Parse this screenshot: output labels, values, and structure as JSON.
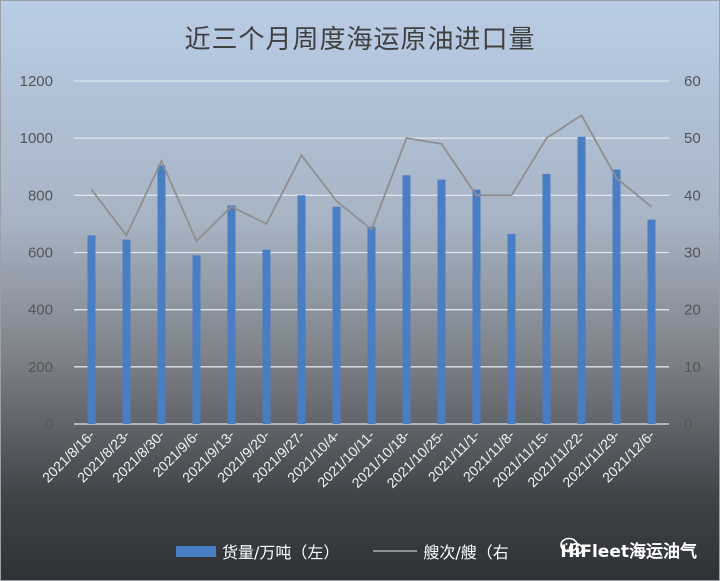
{
  "chart_data": {
    "type": "bar+line",
    "title": "近三个月周度海运原油进口量",
    "categories": [
      "2021/8/16-",
      "2021/8/23-",
      "2021/8/30-",
      "2021/9/6-",
      "2021/9/13-",
      "2021/9/20-",
      "2021/9/27-",
      "2021/10/4-",
      "2021/10/11-",
      "2021/10/18-",
      "2021/10/25-",
      "2021/11/1-",
      "2021/11/8-",
      "2021/11/15-",
      "2021/11/22-",
      "2021/11/29-",
      "2021/12/6-"
    ],
    "series": [
      {
        "name": "货量/万吨（左）",
        "type": "bar",
        "axis": "left",
        "color": "#4a7ec4",
        "values": [
          660,
          645,
          905,
          590,
          765,
          610,
          800,
          760,
          690,
          870,
          855,
          820,
          665,
          875,
          1005,
          890,
          715
        ]
      },
      {
        "name": "艘次/艘（右",
        "type": "line",
        "axis": "right",
        "color": "#8f8f8f",
        "values": [
          41,
          33,
          46,
          32,
          38,
          35,
          47,
          39,
          34,
          50,
          49,
          40,
          40,
          50,
          54,
          43,
          38
        ]
      }
    ],
    "y_left": {
      "min": 0,
      "max": 1200,
      "ticks": [
        "0",
        "200",
        "400",
        "600",
        "800",
        "1000",
        "1200"
      ]
    },
    "y_right": {
      "min": 0,
      "max": 60,
      "ticks": [
        "0",
        "10",
        "20",
        "30",
        "40",
        "50",
        "60"
      ]
    },
    "grid": true,
    "legend_position": "bottom"
  },
  "watermark": {
    "text": "HiFleet海运油气"
  }
}
